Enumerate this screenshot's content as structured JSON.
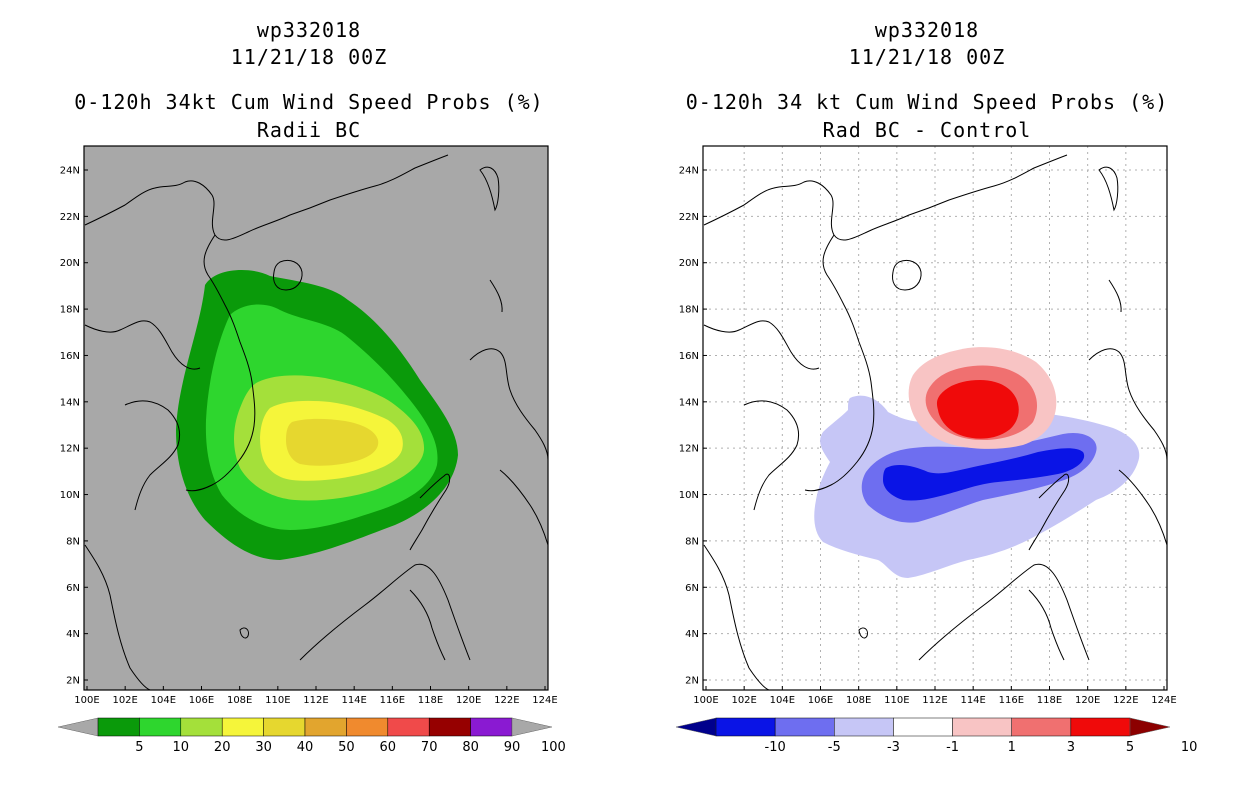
{
  "panels": [
    {
      "id": "left",
      "title_line1": "wp332018",
      "title_line2": "11/21/18 00Z",
      "title_line3": "0-120h 34kt Cum Wind Speed Probs (%)",
      "title_line4": "Radii BC",
      "background_color": "#a8a8a8",
      "x_ticks": [
        "100E",
        "102E",
        "104E",
        "106E",
        "108E",
        "110E",
        "112E",
        "114E",
        "116E",
        "118E",
        "120E",
        "122E",
        "124E"
      ],
      "y_ticks": [
        "2N",
        "4N",
        "6N",
        "8N",
        "10N",
        "12N",
        "14N",
        "16N",
        "18N",
        "20N",
        "22N",
        "24N"
      ],
      "colorbar": {
        "labels": [
          "5",
          "10",
          "20",
          "30",
          "40",
          "50",
          "60",
          "70",
          "80",
          "90",
          "100"
        ],
        "colors": [
          "#a8a8a8",
          "#0a9a0a",
          "#2ed62e",
          "#a4e03a",
          "#f5f53a",
          "#e6d72f",
          "#e2a52e",
          "#f08a2e",
          "#f04a4a",
          "#960000",
          "#8a1ad2",
          "#a8a8a8"
        ]
      }
    },
    {
      "id": "right",
      "title_line1": "wp332018",
      "title_line2": "11/21/18 00Z",
      "title_line3": "0-120h 34 kt Cum Wind Speed Probs (%)",
      "title_line4": "Rad BC - Control",
      "background_color": "#ffffff",
      "x_ticks": [
        "100E",
        "102E",
        "104E",
        "106E",
        "108E",
        "110E",
        "112E",
        "114E",
        "116E",
        "118E",
        "120E",
        "122E",
        "124E"
      ],
      "y_ticks": [
        "2N",
        "4N",
        "6N",
        "8N",
        "10N",
        "12N",
        "14N",
        "16N",
        "18N",
        "20N",
        "22N",
        "24N"
      ],
      "colorbar": {
        "labels": [
          "-10",
          "-5",
          "-3",
          "-1",
          "1",
          "3",
          "5",
          "10"
        ],
        "colors": [
          "#00008c",
          "#0a14e6",
          "#6e6ef0",
          "#c6c6f6",
          "#ffffff",
          "#f8c4c4",
          "#f07070",
          "#f00a0a",
          "#8c0000"
        ]
      }
    }
  ]
}
